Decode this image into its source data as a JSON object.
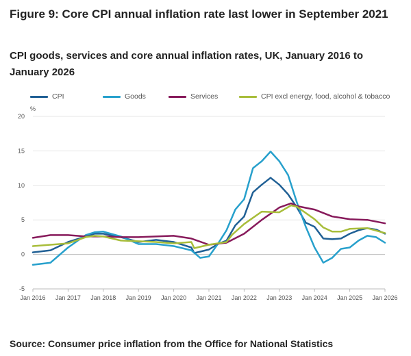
{
  "figure": {
    "title": "Figure 9: Core CPI annual inflation rate last lower in September 2021",
    "subtitle": "CPI goods, services and core annual inflation rates, UK, January 2016 to January 2026",
    "source": "Source: Consumer price inflation from the Office for National Statistics"
  },
  "chart_data": {
    "type": "line",
    "title": "CPI goods, services and core annual inflation rates, UK, January 2016 to January 2026",
    "xlabel": "",
    "ylabel": "%",
    "ylim": [
      -5,
      20
    ],
    "yticks": [
      -5,
      0,
      5,
      10,
      15,
      20
    ],
    "xlim": [
      "2016-01",
      "2026-01"
    ],
    "xticks": [
      "Jan 2016",
      "Jan 2017",
      "Jan 2018",
      "Jan 2019",
      "Jan 2020",
      "Jan 2021",
      "Jan 2022",
      "Jan 2023",
      "Jan 2024",
      "Jan 2025",
      "Jan 2026"
    ],
    "grid": "horizontal",
    "legend_position": "top",
    "series": [
      {
        "name": "CPI",
        "color": "#206095",
        "points": [
          [
            "2016-01",
            0.3
          ],
          [
            "2016-07",
            0.6
          ],
          [
            "2017-01",
            1.8
          ],
          [
            "2017-07",
            2.6
          ],
          [
            "2017-10",
            3.0
          ],
          [
            "2018-01",
            3.0
          ],
          [
            "2018-07",
            2.5
          ],
          [
            "2019-01",
            1.8
          ],
          [
            "2019-07",
            2.1
          ],
          [
            "2020-01",
            1.8
          ],
          [
            "2020-07",
            1.0
          ],
          [
            "2020-08",
            0.2
          ],
          [
            "2021-01",
            0.7
          ],
          [
            "2021-04",
            1.5
          ],
          [
            "2021-07",
            2.0
          ],
          [
            "2021-10",
            4.2
          ],
          [
            "2022-01",
            5.5
          ],
          [
            "2022-04",
            9.0
          ],
          [
            "2022-07",
            10.1
          ],
          [
            "2022-10",
            11.1
          ],
          [
            "2023-01",
            10.1
          ],
          [
            "2023-04",
            8.7
          ],
          [
            "2023-07",
            6.8
          ],
          [
            "2023-10",
            4.6
          ],
          [
            "2024-01",
            4.0
          ],
          [
            "2024-04",
            2.3
          ],
          [
            "2024-07",
            2.2
          ],
          [
            "2024-10",
            2.3
          ],
          [
            "2025-01",
            3.0
          ],
          [
            "2025-04",
            3.5
          ],
          [
            "2025-07",
            3.8
          ],
          [
            "2025-10",
            3.6
          ],
          [
            "2026-01",
            3.0
          ]
        ]
      },
      {
        "name": "Goods",
        "color": "#27a0cc",
        "points": [
          [
            "2016-01",
            -1.5
          ],
          [
            "2016-07",
            -1.2
          ],
          [
            "2017-01",
            1.0
          ],
          [
            "2017-07",
            2.8
          ],
          [
            "2017-10",
            3.2
          ],
          [
            "2018-01",
            3.3
          ],
          [
            "2018-07",
            2.6
          ],
          [
            "2019-01",
            1.5
          ],
          [
            "2019-07",
            1.5
          ],
          [
            "2020-01",
            1.2
          ],
          [
            "2020-07",
            0.6
          ],
          [
            "2020-10",
            -0.5
          ],
          [
            "2021-01",
            -0.3
          ],
          [
            "2021-04",
            1.5
          ],
          [
            "2021-07",
            3.5
          ],
          [
            "2021-10",
            6.5
          ],
          [
            "2022-01",
            8.0
          ],
          [
            "2022-04",
            12.5
          ],
          [
            "2022-07",
            13.5
          ],
          [
            "2022-10",
            14.9
          ],
          [
            "2023-01",
            13.5
          ],
          [
            "2023-04",
            11.5
          ],
          [
            "2023-07",
            7.5
          ],
          [
            "2023-10",
            4.0
          ],
          [
            "2024-01",
            1.0
          ],
          [
            "2024-04",
            -1.2
          ],
          [
            "2024-07",
            -0.5
          ],
          [
            "2024-10",
            0.8
          ],
          [
            "2025-01",
            1.0
          ],
          [
            "2025-04",
            2.0
          ],
          [
            "2025-07",
            2.7
          ],
          [
            "2025-10",
            2.5
          ],
          [
            "2026-01",
            1.7
          ]
        ]
      },
      {
        "name": "Services",
        "color": "#871a5b",
        "points": [
          [
            "2016-01",
            2.4
          ],
          [
            "2016-07",
            2.8
          ],
          [
            "2017-01",
            2.8
          ],
          [
            "2017-07",
            2.6
          ],
          [
            "2018-01",
            2.6
          ],
          [
            "2018-07",
            2.5
          ],
          [
            "2019-01",
            2.5
          ],
          [
            "2019-07",
            2.6
          ],
          [
            "2020-01",
            2.7
          ],
          [
            "2020-07",
            2.3
          ],
          [
            "2021-01",
            1.4
          ],
          [
            "2021-07",
            1.7
          ],
          [
            "2022-01",
            3.0
          ],
          [
            "2022-07",
            5.0
          ],
          [
            "2023-01",
            6.8
          ],
          [
            "2023-05",
            7.4
          ],
          [
            "2023-07",
            7.0
          ],
          [
            "2024-01",
            6.5
          ],
          [
            "2024-07",
            5.5
          ],
          [
            "2025-01",
            5.1
          ],
          [
            "2025-07",
            5.0
          ],
          [
            "2026-01",
            4.5
          ]
        ]
      },
      {
        "name": "CPI excl energy, food, alcohol & tobacco",
        "color": "#a8bd3a",
        "points": [
          [
            "2016-01",
            1.2
          ],
          [
            "2016-07",
            1.4
          ],
          [
            "2017-01",
            1.6
          ],
          [
            "2017-07",
            2.5
          ],
          [
            "2017-10",
            2.7
          ],
          [
            "2018-01",
            2.6
          ],
          [
            "2018-07",
            2.0
          ],
          [
            "2019-01",
            1.9
          ],
          [
            "2019-07",
            1.8
          ],
          [
            "2020-01",
            1.6
          ],
          [
            "2020-07",
            1.8
          ],
          [
            "2020-08",
            0.9
          ],
          [
            "2021-01",
            1.4
          ],
          [
            "2021-07",
            1.8
          ],
          [
            "2021-09",
            2.9
          ],
          [
            "2022-01",
            4.4
          ],
          [
            "2022-07",
            6.2
          ],
          [
            "2023-01",
            6.1
          ],
          [
            "2023-05",
            7.1
          ],
          [
            "2023-07",
            6.9
          ],
          [
            "2024-01",
            5.1
          ],
          [
            "2024-04",
            3.9
          ],
          [
            "2024-07",
            3.3
          ],
          [
            "2024-10",
            3.3
          ],
          [
            "2025-01",
            3.7
          ],
          [
            "2025-07",
            3.8
          ],
          [
            "2026-01",
            3.1
          ]
        ]
      }
    ]
  }
}
